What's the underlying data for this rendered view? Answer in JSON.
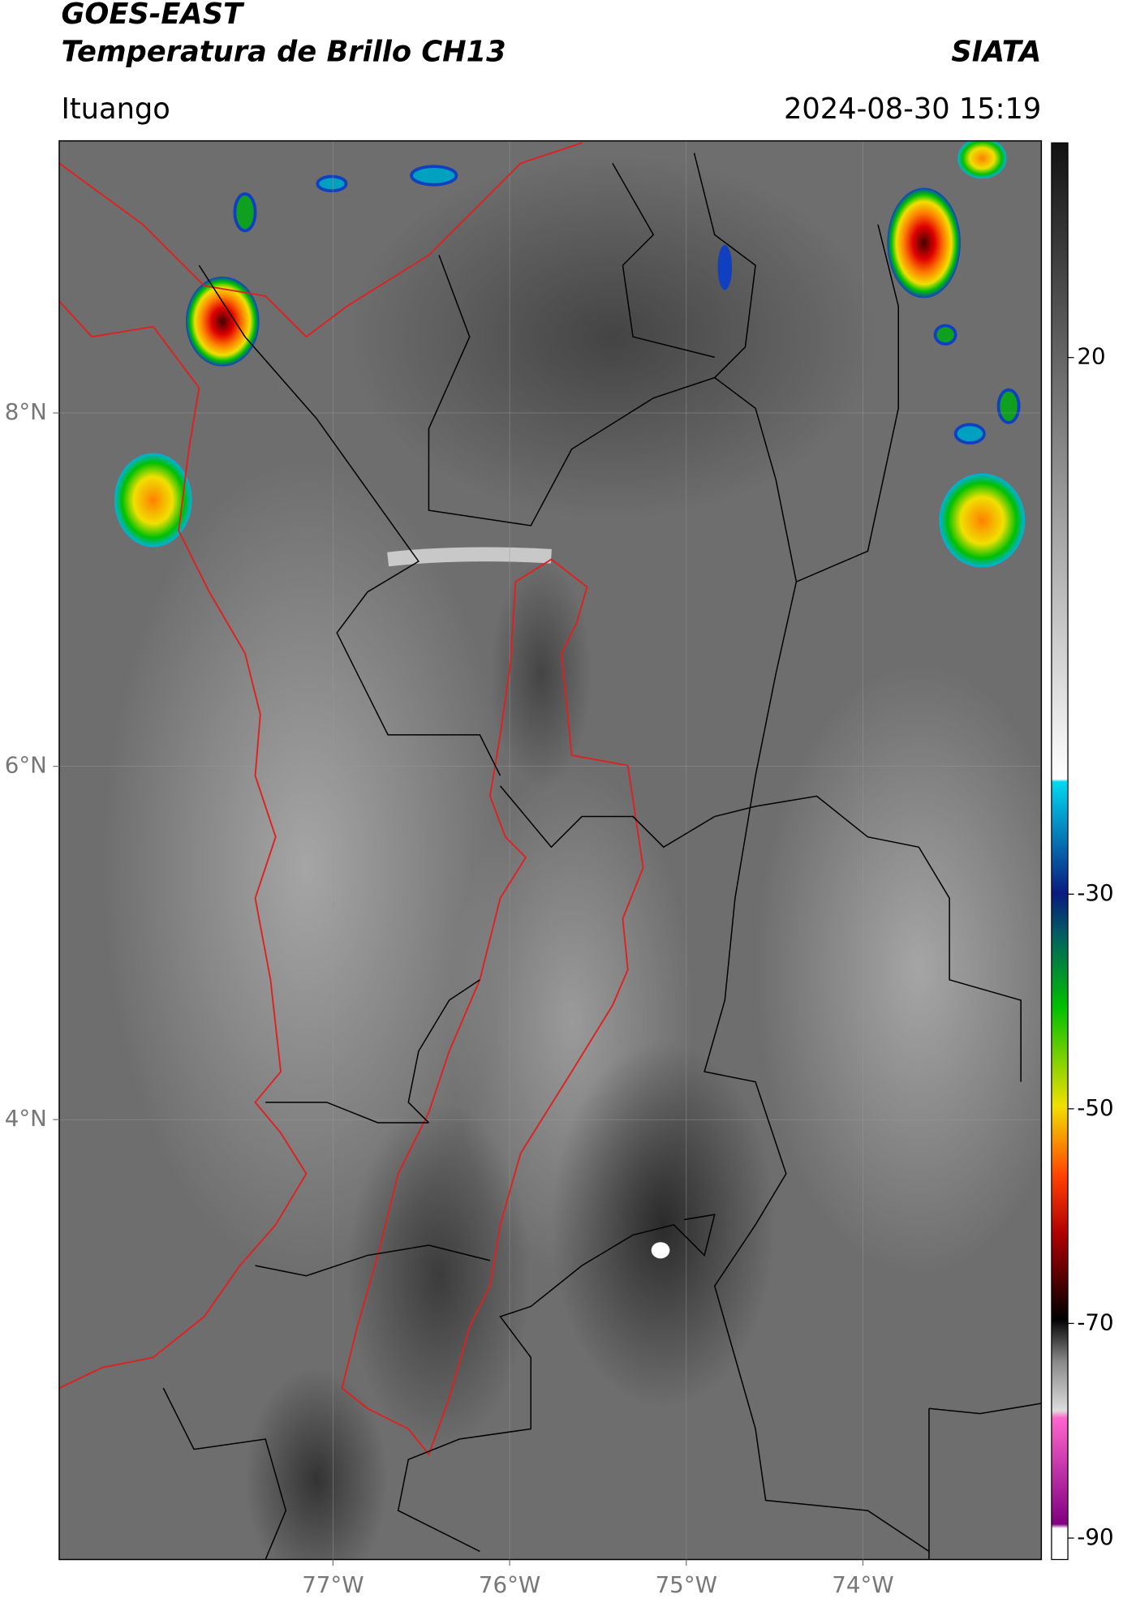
{
  "header": {
    "title": "GOES-EAST",
    "subtitle": "Temperatura de Brillo CH13",
    "source": "SIATA",
    "location": "Ituango",
    "datetime": "2024-08-30 15:19"
  },
  "map": {
    "xlim": [
      -78.55,
      -72.99
    ],
    "ylim": [
      1.51,
      9.54
    ],
    "xticks": [
      {
        "value": -77,
        "label": "77°W"
      },
      {
        "value": -76,
        "label": "76°W"
      },
      {
        "value": -75,
        "label": "75°W"
      },
      {
        "value": -74,
        "label": "74°W"
      }
    ],
    "yticks": [
      {
        "value": 8,
        "label": "8°N"
      },
      {
        "value": 6,
        "label": "6°N"
      },
      {
        "value": 4,
        "label": "4°N"
      }
    ]
  },
  "colorbar": {
    "lim": [
      -92,
      40
    ],
    "ticks": [
      20,
      -30,
      -50,
      -70,
      -90
    ]
  }
}
